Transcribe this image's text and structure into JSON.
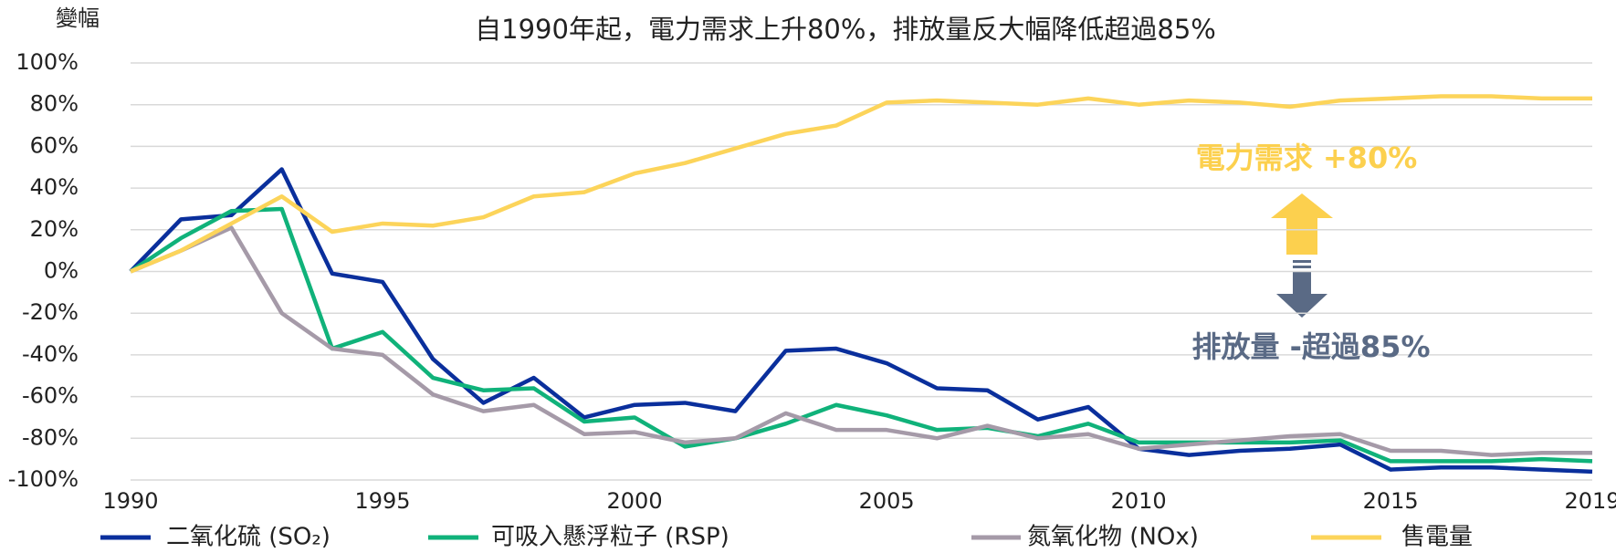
{
  "chart_data": {
    "type": "line",
    "title": "自1990年起，電力需求上升80%，排放量反大幅降低超過85%",
    "y_label": "變幅",
    "x": [
      1990,
      1991,
      1992,
      1993,
      1994,
      1995,
      1996,
      1997,
      1998,
      1999,
      2000,
      2001,
      2002,
      2003,
      2004,
      2005,
      2006,
      2007,
      2008,
      2009,
      2010,
      2011,
      2012,
      2013,
      2014,
      2015,
      2016,
      2017,
      2018,
      2019
    ],
    "xlim": [
      1990,
      2019
    ],
    "xticks": [
      1990,
      1995,
      2000,
      2005,
      2010,
      2015,
      2019
    ],
    "ylim": [
      -100,
      100
    ],
    "yticks": [
      {
        "value": 100,
        "label": "100%"
      },
      {
        "value": 80,
        "label": "80%"
      },
      {
        "value": 60,
        "label": "60%"
      },
      {
        "value": 40,
        "label": "40%"
      },
      {
        "value": 20,
        "label": "20%"
      },
      {
        "value": 0,
        "label": "0%"
      },
      {
        "value": -20,
        "label": "-20%"
      },
      {
        "value": -40,
        "label": "-40%"
      },
      {
        "value": -60,
        "label": "-60%"
      },
      {
        "value": -80,
        "label": "-80%"
      },
      {
        "value": -100,
        "label": "-100%"
      }
    ],
    "grid": true,
    "series": [
      {
        "name": "二氧化硫 (SO₂)",
        "color": "#0a2f9c",
        "values": [
          0,
          25,
          27,
          49,
          -1,
          -5,
          -42,
          -63,
          -51,
          -70,
          -64,
          -63,
          -67,
          -38,
          -37,
          -44,
          -56,
          -57,
          -71,
          -65,
          -85,
          -88,
          -86,
          -85,
          -83,
          -95,
          -94,
          -94,
          -95,
          -96
        ]
      },
      {
        "name": "可吸入懸浮粒子 (RSP)",
        "color": "#10b27a",
        "values": [
          0,
          16,
          29,
          30,
          -37,
          -29,
          -51,
          -57,
          -56,
          -72,
          -70,
          -84,
          -80,
          -73,
          -64,
          -69,
          -76,
          -75,
          -79,
          -73,
          -82,
          -82,
          -82,
          -82,
          -81,
          -91,
          -91,
          -91,
          -90,
          -91
        ]
      },
      {
        "name": "氮氧化物 (NOx)",
        "color": "#a59aa8",
        "values": [
          0,
          10,
          21,
          -20,
          -37,
          -40,
          -59,
          -67,
          -64,
          -78,
          -77,
          -82,
          -80,
          -68,
          -76,
          -76,
          -80,
          -74,
          -80,
          -78,
          -85,
          -83,
          -81,
          -79,
          -78,
          -86,
          -86,
          -88,
          -87,
          -87
        ]
      },
      {
        "name": "售電量",
        "color": "#fcd45a",
        "values": [
          0,
          10,
          23,
          36,
          19,
          23,
          22,
          26,
          36,
          38,
          47,
          52,
          59,
          66,
          70,
          81,
          82,
          81,
          80,
          83,
          80,
          82,
          81,
          79,
          82,
          83,
          84,
          84,
          83,
          83
        ]
      }
    ],
    "annotations": [
      {
        "text": "電力需求 +80%",
        "color": "#fcd04e"
      },
      {
        "text": "排放量 -超過85%",
        "color": "#5a6a85"
      }
    ]
  }
}
